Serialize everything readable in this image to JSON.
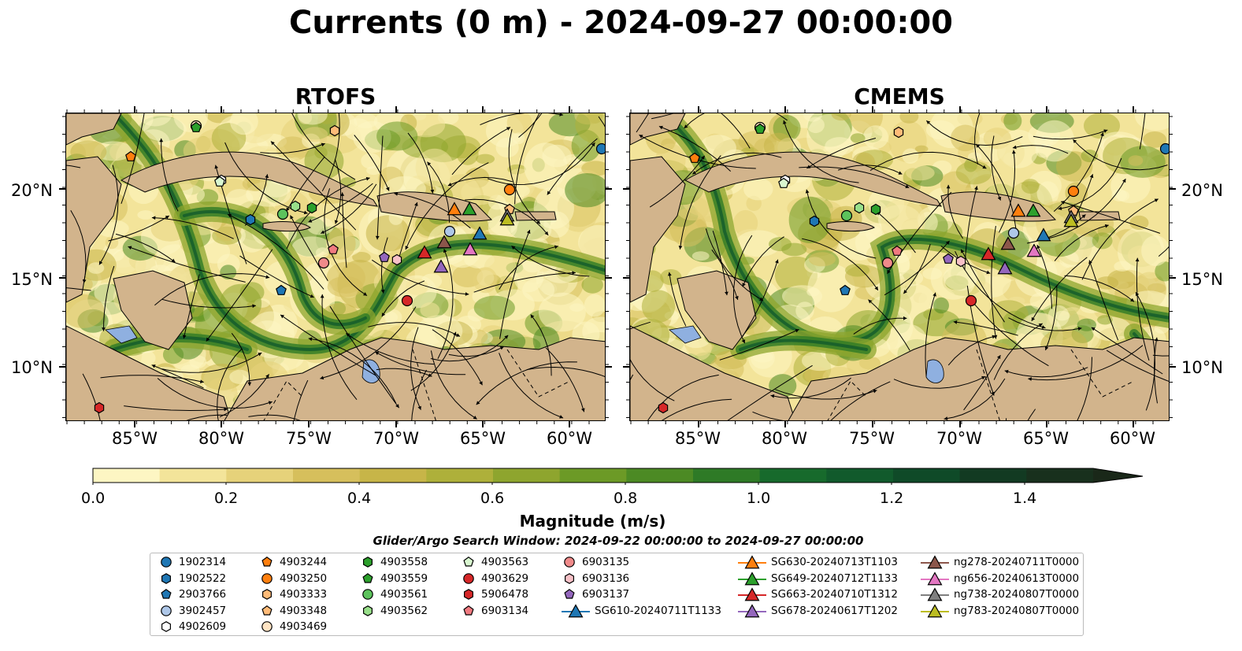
{
  "title": "Currents (0 m) - 2024-09-27 00:00:00",
  "panels": [
    {
      "title": "RTOFS"
    },
    {
      "title": "CMEMS"
    }
  ],
  "axes": {
    "lon_ticks": [
      "85°W",
      "80°W",
      "75°W",
      "70°W",
      "65°W",
      "60°W"
    ],
    "lat_ticks": [
      "20°N",
      "15°N",
      "10°N"
    ]
  },
  "colorbar": {
    "label": "Magnitude (m/s)",
    "ticks": [
      "0.0",
      "0.2",
      "0.4",
      "0.6",
      "0.8",
      "1.0",
      "1.2",
      "1.4"
    ],
    "colors": [
      "#fdf6c3",
      "#f3e49a",
      "#e6d27a",
      "#d6bf5c",
      "#c7b548",
      "#aeb03a",
      "#8ea52e",
      "#6c9a26",
      "#4c8a24",
      "#2e7a26",
      "#176a2c",
      "#115a2c",
      "#0f4a28",
      "#123a22",
      "#18301d",
      "#1a2819"
    ]
  },
  "window_text": "Glider/Argo Search Window: 2024-09-22 00:00:00 to 2024-09-27 00:00:00",
  "colors": {
    "land": "#d2b48c",
    "lake": "#8fb0e0",
    "ocean_low": "#fdf6c3"
  },
  "legend": [
    {
      "label": "1902314",
      "marker": "circle",
      "color": "#1f77b4"
    },
    {
      "label": "1902522",
      "marker": "hexagon",
      "color": "#1f77b4"
    },
    {
      "label": "2903766",
      "marker": "pentagon",
      "color": "#1f77b4"
    },
    {
      "label": "3902457",
      "marker": "circle",
      "color": "#aec7e8"
    },
    {
      "label": "4902609",
      "marker": "hexagon",
      "color": "#ffffff"
    },
    {
      "label": "4903244",
      "marker": "pentagon",
      "color": "#ff7f0e"
    },
    {
      "label": "4903250",
      "marker": "circle",
      "color": "#ff7f0e"
    },
    {
      "label": "4903333",
      "marker": "hexagon",
      "color": "#ffbb78"
    },
    {
      "label": "4903348",
      "marker": "pentagon",
      "color": "#ffbb78"
    },
    {
      "label": "4903469",
      "marker": "circle",
      "color": "#ffe4c4"
    },
    {
      "label": "4903558",
      "marker": "hexagon",
      "color": "#2ca02c"
    },
    {
      "label": "4903559",
      "marker": "pentagon",
      "color": "#2ca02c"
    },
    {
      "label": "4903561",
      "marker": "circle",
      "color": "#5cc35c"
    },
    {
      "label": "4903562",
      "marker": "hexagon",
      "color": "#98df8a"
    },
    {
      "label": "4903563",
      "marker": "pentagon",
      "color": "#d9f7d0"
    },
    {
      "label": "4903629",
      "marker": "circle",
      "color": "#d62728"
    },
    {
      "label": "5906478",
      "marker": "hexagon",
      "color": "#d62728"
    },
    {
      "label": "6903134",
      "marker": "pentagon",
      "color": "#f07a80"
    },
    {
      "label": "6903135",
      "marker": "circle",
      "color": "#f08a8a"
    },
    {
      "label": "6903136",
      "marker": "hexagon",
      "color": "#f7c1c7"
    },
    {
      "label": "6903137",
      "marker": "pentagon",
      "color": "#9467bd"
    },
    {
      "label": "SG610-20240711T1133",
      "marker": "triangle-line",
      "color": "#1f77b4"
    },
    {
      "label": "SG630-20240713T1103",
      "marker": "triangle-line",
      "color": "#ff7f0e"
    },
    {
      "label": "SG649-20240712T1133",
      "marker": "triangle-line",
      "color": "#2ca02c"
    },
    {
      "label": "SG663-20240710T1312",
      "marker": "triangle-line",
      "color": "#d62728"
    },
    {
      "label": "SG678-20240617T1202",
      "marker": "triangle-line",
      "color": "#9467bd"
    },
    {
      "label": "ng278-20240711T0000",
      "marker": "triangle-line",
      "color": "#8c564b"
    },
    {
      "label": "ng656-20240613T0000",
      "marker": "triangle-line",
      "color": "#e377c2"
    },
    {
      "label": "ng738-20240807T0000",
      "marker": "triangle-line",
      "color": "#7f7f7f"
    },
    {
      "label": "ng783-20240807T0000",
      "marker": "triangle-line",
      "color": "#bcbd22"
    }
  ]
}
